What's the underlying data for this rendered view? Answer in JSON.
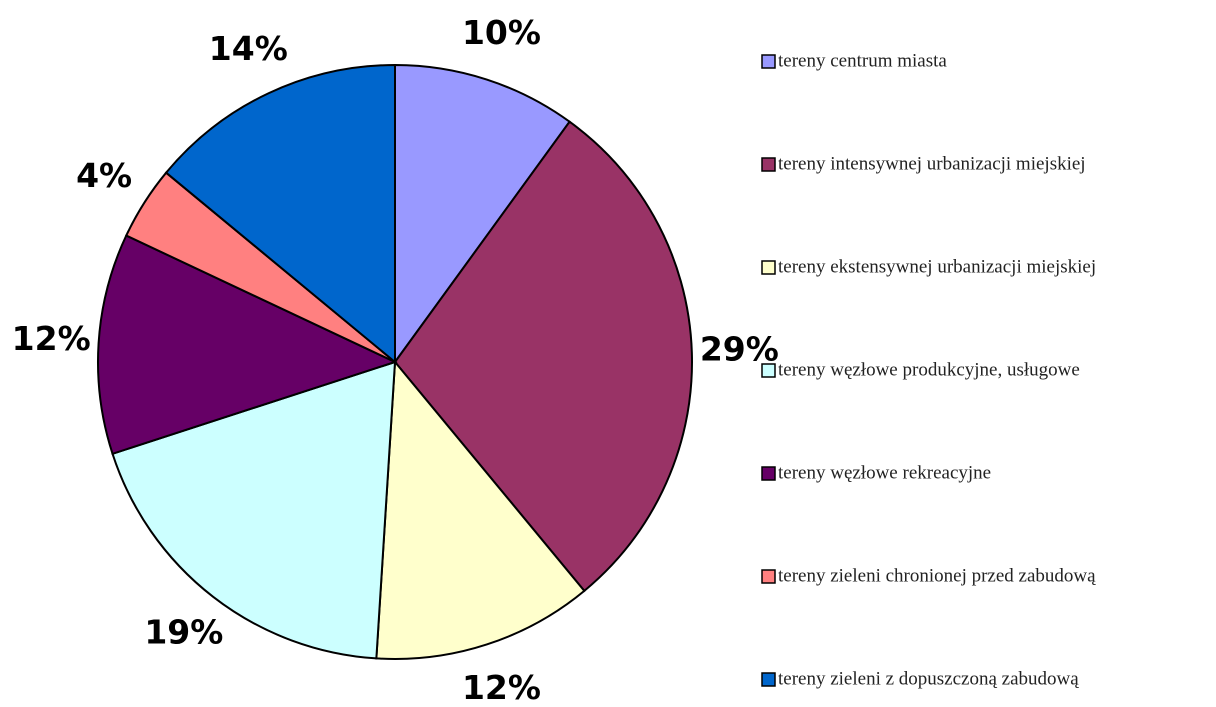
{
  "chart_data": {
    "type": "pie",
    "categories": [
      "tereny centrum miasta",
      "tereny intensywnej urbanizacji miejskiej",
      "tereny ekstensywnej urbanizacji miejskiej",
      "tereny węzłowe produkcyjne, usługowe",
      "tereny węzłowe rekreacyjne",
      "tereny zieleni chronionej przed zabudową",
      "tereny zieleni z dopuszczoną zabudową"
    ],
    "values": [
      10,
      29,
      12,
      19,
      12,
      4,
      14
    ],
    "value_labels": [
      "10%",
      "29%",
      "12%",
      "19%",
      "12%",
      "4%",
      "14%"
    ],
    "colors": [
      "#9999ff",
      "#993366",
      "#ffffcc",
      "#ccffff",
      "#660066",
      "#ff8080",
      "#0066cc"
    ],
    "legend": "right"
  }
}
